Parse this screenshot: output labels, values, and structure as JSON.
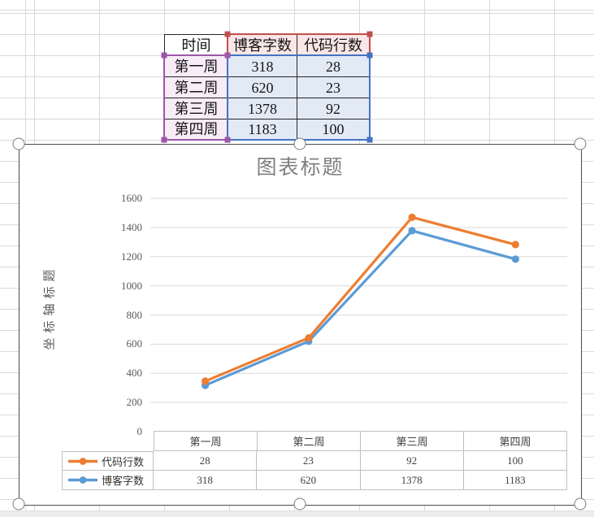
{
  "spreadsheet": {
    "table": {
      "headers": [
        "时间",
        "博客字数",
        "代码行数"
      ],
      "rows": [
        {
          "week": "第一周",
          "blog": "318",
          "code": "28"
        },
        {
          "week": "第二周",
          "blog": "620",
          "code": "23"
        },
        {
          "week": "第三周",
          "blog": "1378",
          "code": "92"
        },
        {
          "week": "第四周",
          "blog": "1183",
          "code": "100"
        }
      ]
    },
    "selection_colors": {
      "series_names_box": "#C0504D",
      "categories_box": "#9C57A8",
      "values_box": "#4472C4"
    }
  },
  "chart": {
    "title": "图表标题",
    "y_axis_title": "坐标轴标题"
  },
  "chart_data": {
    "type": "line",
    "stacked": true,
    "categories": [
      "第一周",
      "第二周",
      "第三周",
      "第四周"
    ],
    "series": [
      {
        "name": "博客字数",
        "values": [
          318,
          620,
          1378,
          1183
        ],
        "color": "#5B9BD5"
      },
      {
        "name": "代码行数",
        "values": [
          28,
          23,
          92,
          100
        ],
        "color": "#ED7D31"
      }
    ],
    "title": "图表标题",
    "ylabel": "坐标轴标题",
    "ylim": [
      0,
      1600
    ],
    "ytick_step": 200,
    "grid": true,
    "legend_position": "keys-beside-data-table-rows",
    "data_table_shown": true
  }
}
